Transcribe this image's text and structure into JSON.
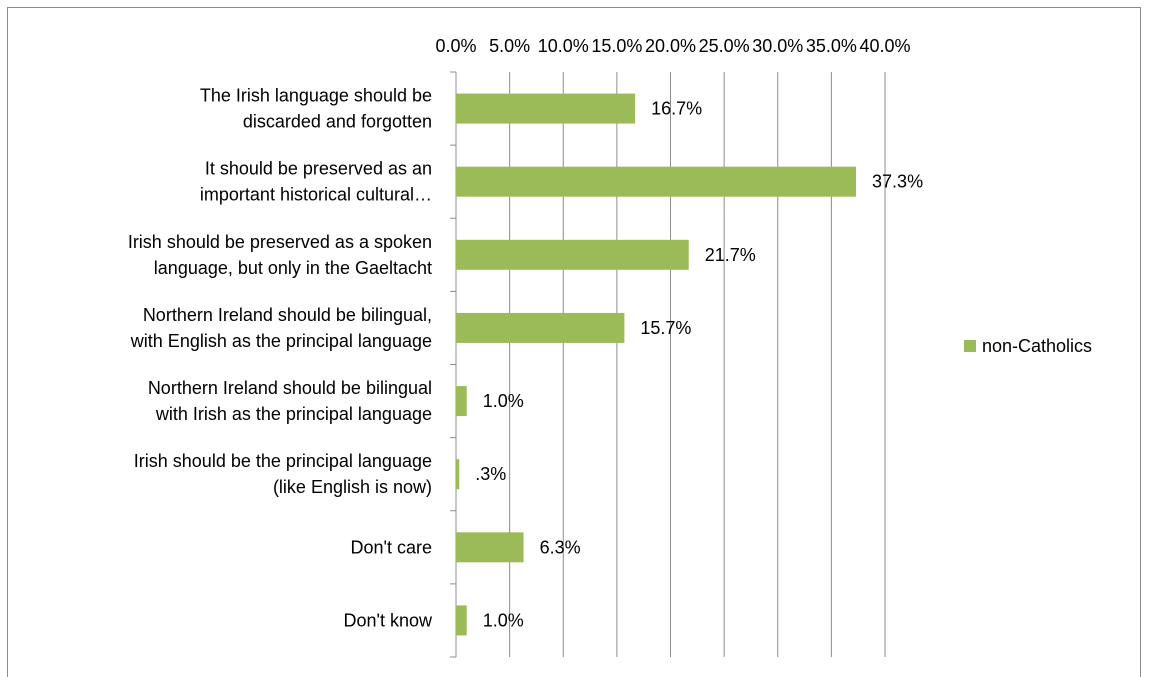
{
  "chart_data": {
    "type": "bar",
    "orientation": "horizontal",
    "categories": [
      [
        "The Irish language should be",
        "discarded and forgotten"
      ],
      [
        "It should be preserved as an",
        "important historical cultural…"
      ],
      [
        "Irish should be preserved as a spoken",
        "language, but only in the Gaeltacht"
      ],
      [
        "Northern Ireland should be bilingual,",
        "with English as the principal language"
      ],
      [
        "Northern Ireland should be bilingual",
        "with Irish as the principal language"
      ],
      [
        "Irish should be the principal language",
        "(like English is now)"
      ],
      [
        "Don't care"
      ],
      [
        "Don't know"
      ]
    ],
    "series": [
      {
        "name": "non-Catholics",
        "color": "#9bbb59",
        "values": [
          16.7,
          37.3,
          21.7,
          15.7,
          1.0,
          0.3,
          6.3,
          1.0
        ],
        "data_labels": [
          "16.7%",
          "37.3%",
          "21.7%",
          "15.7%",
          "1.0%",
          ".3%",
          "6.3%",
          "1.0%"
        ]
      }
    ],
    "xlim": [
      0,
      40
    ],
    "xticks": [
      0,
      5,
      10,
      15,
      20,
      25,
      30,
      35,
      40
    ],
    "xtick_labels": [
      "0.0%",
      "5.0%",
      "10.0%",
      "15.0%",
      "20.0%",
      "25.0%",
      "30.0%",
      "35.0%",
      "40.0%"
    ],
    "x_axis_position": "top",
    "grid": "vertical",
    "legend_position": "right",
    "title": "",
    "xlabel": "",
    "ylabel": ""
  }
}
